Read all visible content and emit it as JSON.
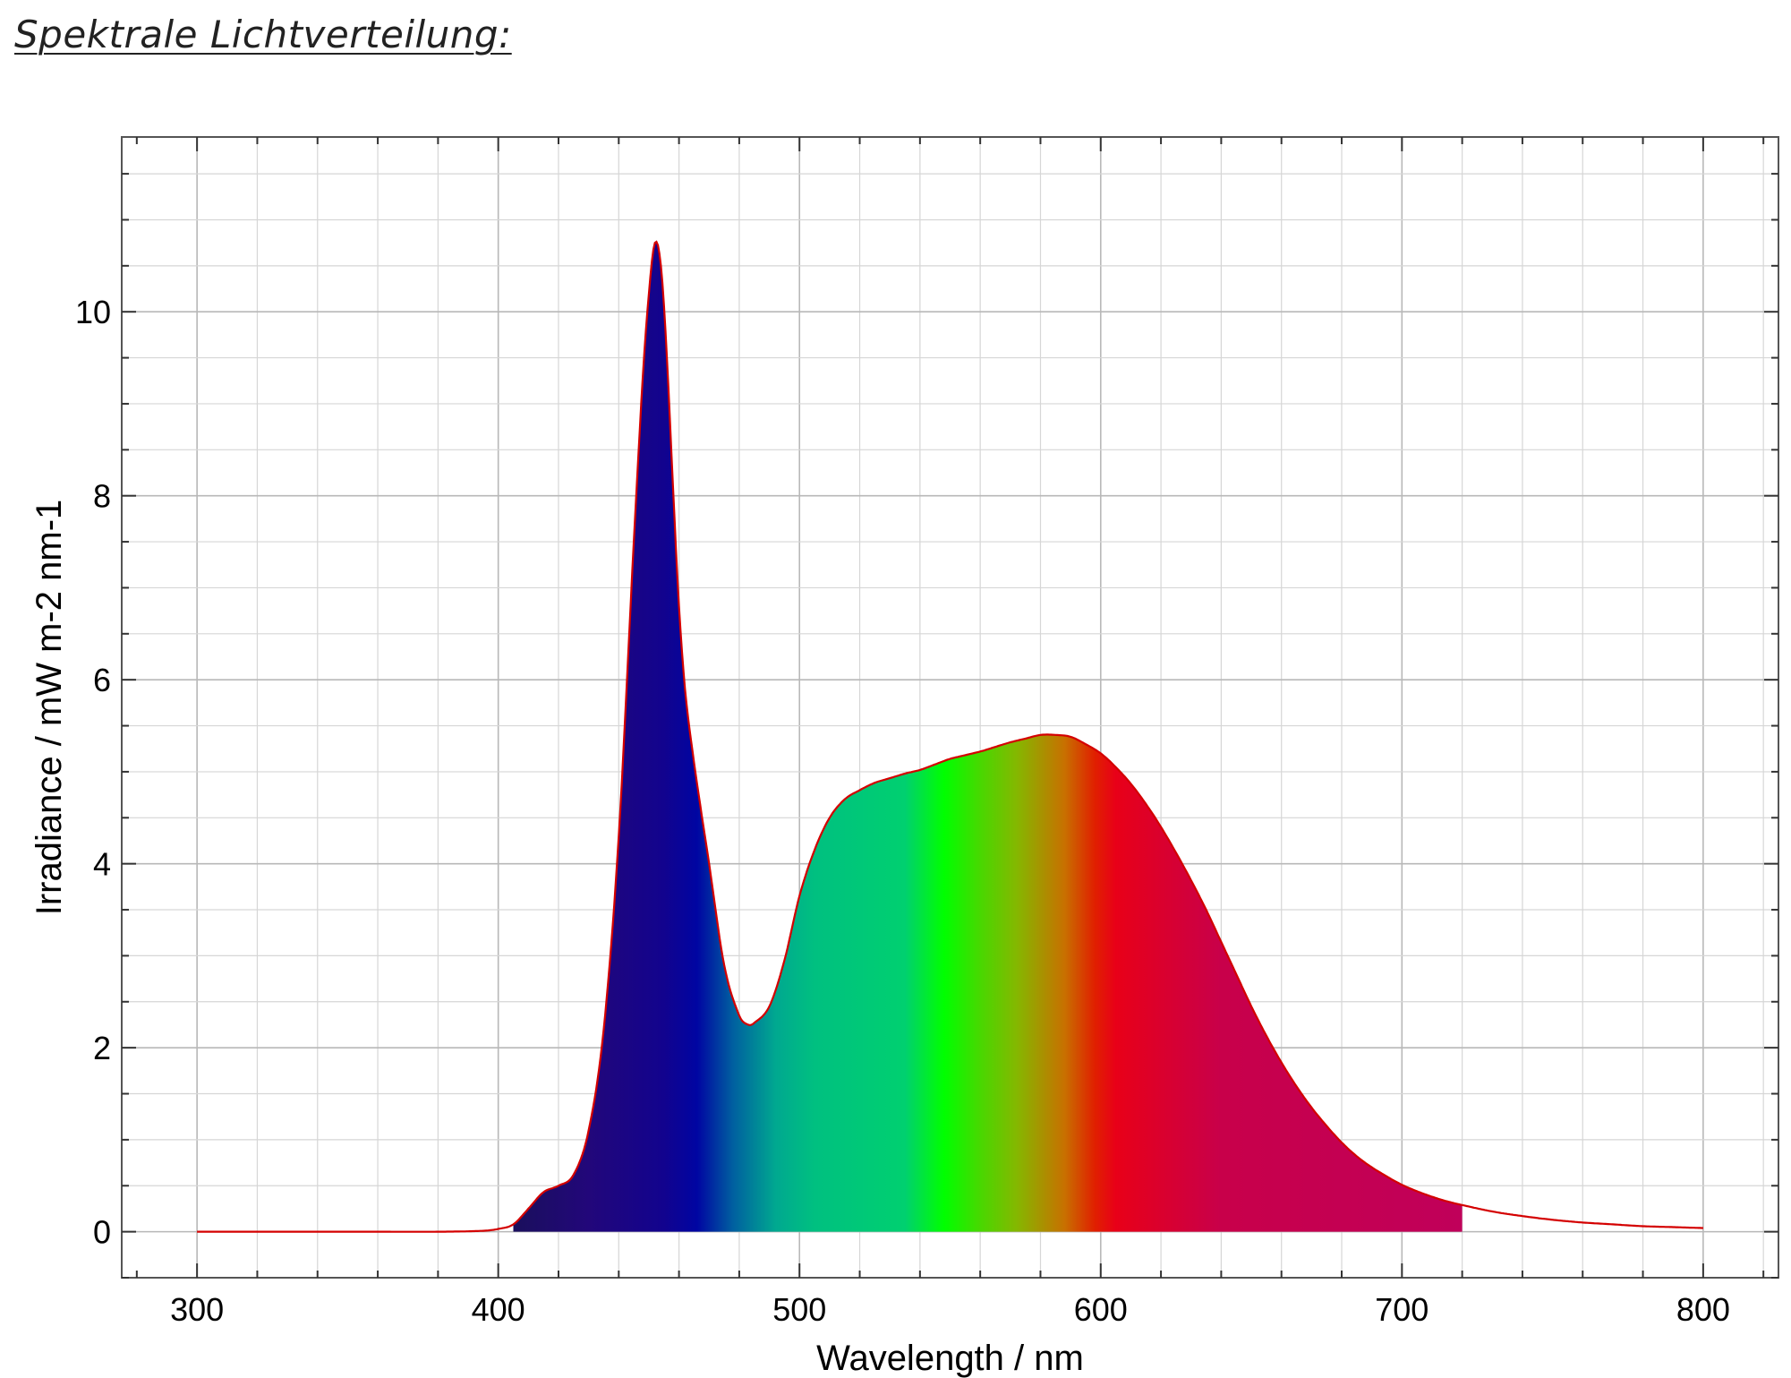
{
  "page": {
    "title": "Spektrale Lichtverteilung:"
  },
  "chart_data": {
    "type": "area",
    "title": "",
    "xlabel": "Wavelength / nm",
    "ylabel": "Irradiance / mW m-2 nm-1",
    "xlim": [
      275,
      825
    ],
    "ylim": [
      -0.5,
      11.9
    ],
    "x_ticks": [
      300,
      400,
      500,
      600,
      700,
      800
    ],
    "y_ticks": [
      0,
      2,
      4,
      6,
      8,
      10
    ],
    "grid": true,
    "line_color": "#d40000",
    "fill_range": [
      405,
      720
    ],
    "fill_gradient": [
      {
        "nm": 405,
        "color": "#1a0f5c"
      },
      {
        "nm": 430,
        "color": "#22077a"
      },
      {
        "nm": 455,
        "color": "#12038e"
      },
      {
        "nm": 466,
        "color": "#0005a2"
      },
      {
        "nm": 478,
        "color": "#0060a0"
      },
      {
        "nm": 492,
        "color": "#00a890"
      },
      {
        "nm": 505,
        "color": "#00c080"
      },
      {
        "nm": 535,
        "color": "#00d070"
      },
      {
        "nm": 548,
        "color": "#00ff00"
      },
      {
        "nm": 560,
        "color": "#48d800"
      },
      {
        "nm": 572,
        "color": "#84b800"
      },
      {
        "nm": 588,
        "color": "#c87000"
      },
      {
        "nm": 598,
        "color": "#e02000"
      },
      {
        "nm": 605,
        "color": "#e80018"
      },
      {
        "nm": 640,
        "color": "#c8004a"
      },
      {
        "nm": 720,
        "color": "#c0005a"
      }
    ],
    "series": [
      {
        "x": [
          300,
          320,
          340,
          360,
          380,
          395,
          400,
          405,
          410,
          415,
          420,
          425,
          430,
          435,
          440,
          445,
          448,
          450,
          452,
          454,
          456,
          458,
          460,
          462,
          465,
          470,
          475,
          480,
          483,
          485,
          490,
          495,
          500,
          505,
          510,
          515,
          520,
          525,
          530,
          535,
          540,
          545,
          550,
          555,
          560,
          565,
          570,
          575,
          580,
          585,
          590,
          595,
          600,
          605,
          610,
          615,
          620,
          625,
          630,
          635,
          640,
          645,
          650,
          655,
          660,
          665,
          670,
          675,
          680,
          685,
          690,
          695,
          700,
          705,
          710,
          715,
          720,
          730,
          740,
          750,
          760,
          770,
          780,
          790,
          800
        ],
        "y": [
          0.0,
          0.0,
          0.0,
          0.0,
          0.0,
          0.01,
          0.03,
          0.08,
          0.25,
          0.43,
          0.5,
          0.62,
          1.1,
          2.2,
          4.3,
          7.5,
          9.3,
          10.2,
          10.75,
          10.5,
          9.5,
          8.1,
          6.8,
          5.9,
          5.1,
          4.0,
          2.9,
          2.35,
          2.25,
          2.27,
          2.45,
          2.95,
          3.65,
          4.15,
          4.5,
          4.7,
          4.8,
          4.88,
          4.93,
          4.98,
          5.02,
          5.08,
          5.14,
          5.18,
          5.22,
          5.27,
          5.32,
          5.36,
          5.4,
          5.4,
          5.38,
          5.3,
          5.2,
          5.05,
          4.87,
          4.65,
          4.4,
          4.12,
          3.82,
          3.5,
          3.15,
          2.8,
          2.45,
          2.13,
          1.84,
          1.58,
          1.35,
          1.15,
          0.97,
          0.82,
          0.7,
          0.6,
          0.51,
          0.44,
          0.38,
          0.33,
          0.29,
          0.22,
          0.17,
          0.13,
          0.1,
          0.08,
          0.06,
          0.05,
          0.04
        ]
      }
    ]
  }
}
